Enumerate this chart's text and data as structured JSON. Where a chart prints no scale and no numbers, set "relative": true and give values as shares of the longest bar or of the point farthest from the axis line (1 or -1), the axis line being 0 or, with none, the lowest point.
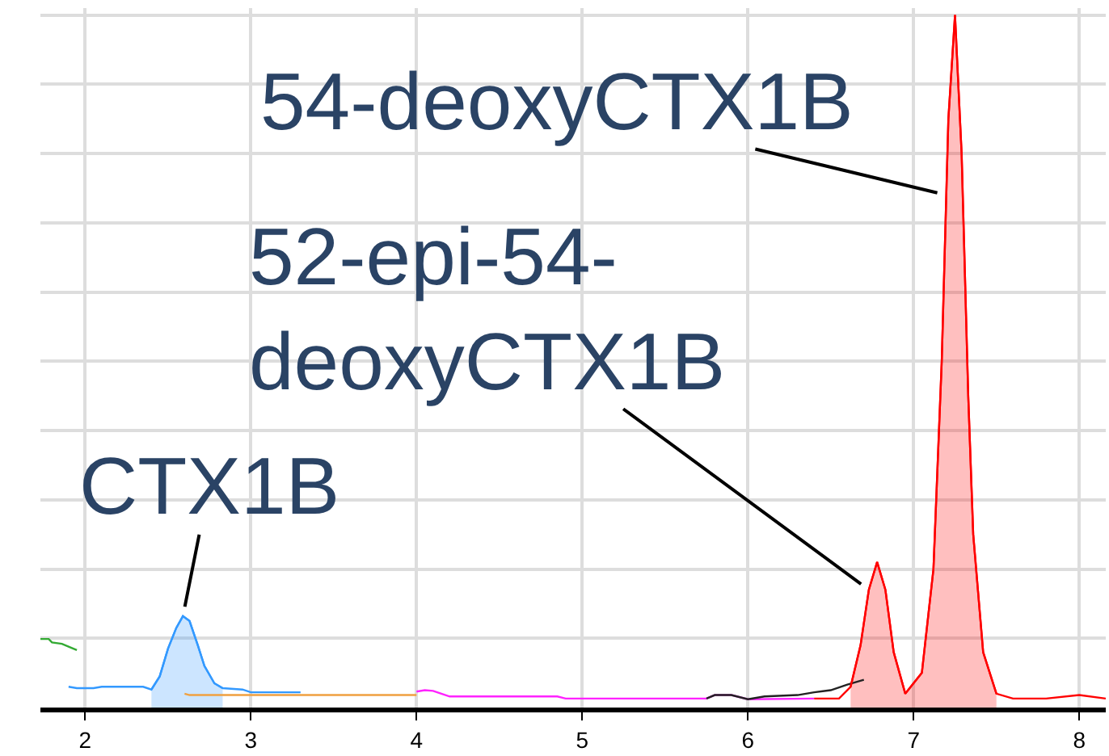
{
  "chart_data": {
    "type": "line",
    "relative": true,
    "xlim": [
      1.73,
      8.16
    ],
    "xticks": [
      2,
      3,
      4,
      5,
      6,
      7,
      8
    ],
    "tick_labels": "x",
    "grid": true,
    "series": [
      {
        "color": "#33aa33",
        "x": [
          1.73,
          1.78,
          1.8,
          1.86,
          1.9,
          1.95
        ],
        "values": [
          0.099,
          0.099,
          0.094,
          0.092,
          0.088,
          0.083
        ]
      },
      {
        "color": "#3399ff",
        "x": [
          1.9,
          1.95,
          2.05,
          2.1,
          2.35,
          2.4,
          2.45,
          2.5,
          2.55,
          2.59,
          2.63,
          2.68,
          2.72,
          2.78,
          2.83,
          2.95,
          3.0,
          3.3
        ],
        "values": [
          0.03,
          0.028,
          0.028,
          0.03,
          0.03,
          0.026,
          0.045,
          0.085,
          0.115,
          0.132,
          0.125,
          0.09,
          0.06,
          0.035,
          0.028,
          0.026,
          0.022,
          0.022
        ]
      },
      {
        "type": "area",
        "color": "#3399ff",
        "x": [
          2.4,
          2.45,
          2.5,
          2.55,
          2.59,
          2.63,
          2.68,
          2.72,
          2.78,
          2.83
        ],
        "values": [
          0.026,
          0.045,
          0.085,
          0.115,
          0.132,
          0.125,
          0.09,
          0.06,
          0.035,
          0.028
        ]
      },
      {
        "color": "#f0a040",
        "x": [
          2.6,
          2.63,
          4.0
        ],
        "values": [
          0.02,
          0.018,
          0.018
        ]
      },
      {
        "color": "#ff22ff",
        "x": [
          4.0,
          4.05,
          4.1,
          4.15,
          4.2,
          4.85,
          4.9,
          5.0,
          5.75,
          5.8,
          5.9,
          6.0,
          6.4
        ],
        "values": [
          0.023,
          0.025,
          0.024,
          0.02,
          0.016,
          0.016,
          0.013,
          0.013,
          0.013,
          0.018,
          0.018,
          0.012,
          0.013
        ]
      },
      {
        "color": "#222222",
        "x": [
          5.75,
          5.8,
          5.9,
          6.0,
          6.1,
          6.3,
          6.4,
          6.5,
          6.6,
          6.7
        ],
        "values": [
          0.013,
          0.018,
          0.018,
          0.012,
          0.016,
          0.018,
          0.022,
          0.025,
          0.033,
          0.04
        ]
      },
      {
        "color": "#ff0000",
        "x": [
          6.4,
          6.55,
          6.62,
          6.68,
          6.73,
          6.78,
          6.83,
          6.88,
          6.95,
          7.05,
          7.12,
          7.17,
          7.21,
          7.25,
          7.29,
          7.33,
          7.36,
          7.42,
          7.5,
          7.6,
          7.8,
          8.0,
          8.16
        ],
        "values": [
          0.013,
          0.013,
          0.03,
          0.09,
          0.17,
          0.21,
          0.17,
          0.08,
          0.02,
          0.05,
          0.2,
          0.5,
          0.85,
          1.0,
          0.8,
          0.45,
          0.25,
          0.08,
          0.02,
          0.013,
          0.013,
          0.018,
          0.013
        ]
      },
      {
        "type": "area",
        "color": "#ff0000",
        "x": [
          6.62,
          6.68,
          6.73,
          6.78,
          6.83,
          6.88,
          6.95,
          7.05,
          7.12,
          7.17,
          7.21,
          7.25,
          7.29,
          7.33,
          7.36,
          7.42,
          7.5
        ],
        "values": [
          0.03,
          0.09,
          0.17,
          0.21,
          0.17,
          0.08,
          0.02,
          0.05,
          0.2,
          0.5,
          0.85,
          1.0,
          0.8,
          0.45,
          0.25,
          0.08,
          0.02
        ]
      }
    ],
    "annotations": [
      {
        "text": "CTX1B",
        "x": 2.59,
        "y": 0.132
      },
      {
        "text": "54-deoxyCTX1B",
        "x": 7.2,
        "y": 0.74
      },
      {
        "text": "52-epi-54-\ndeoxyCTX1B",
        "x": 6.73,
        "y": 0.17
      }
    ]
  }
}
